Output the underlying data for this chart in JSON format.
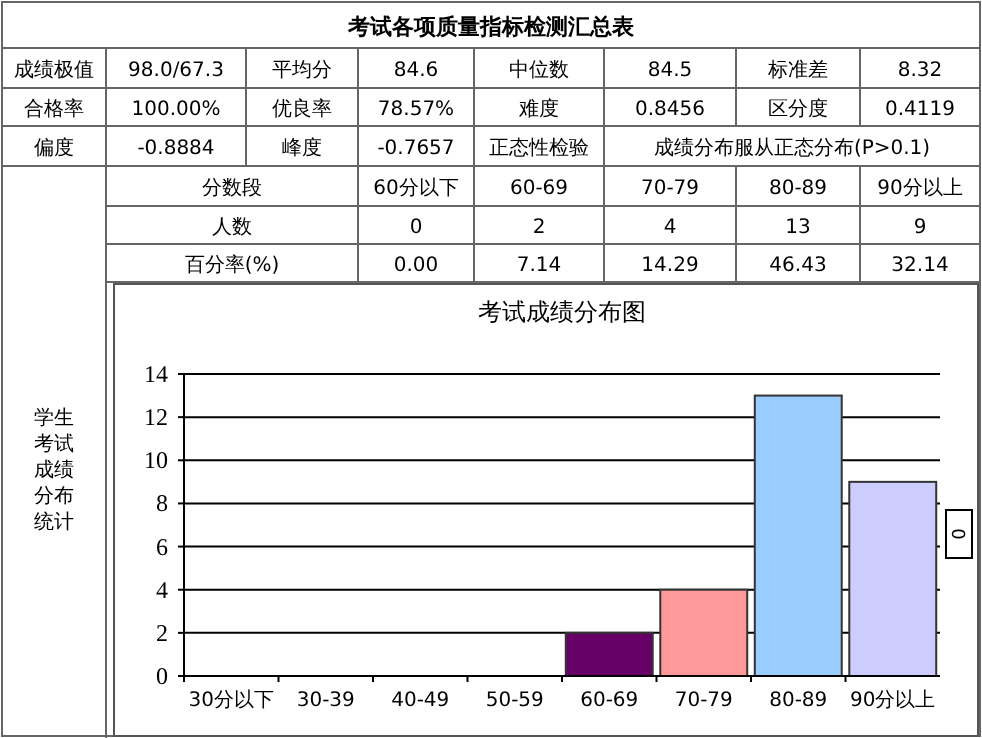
{
  "chart_data": {
    "type": "bar",
    "title": "考试成绩分布图",
    "categories": [
      "30分以下",
      "30-39",
      "40-49",
      "50-59",
      "60-69",
      "70-79",
      "80-89",
      "90分以上"
    ],
    "values": [
      0,
      0,
      0,
      0,
      2,
      4,
      13,
      9
    ],
    "colors": [
      "#660066",
      "#660066",
      "#660066",
      "#660066",
      "#660066",
      "#ff9999",
      "#99ccff",
      "#ccccff"
    ],
    "ylim": [
      0,
      14
    ],
    "yticks": [
      0,
      2,
      4,
      6,
      8,
      10,
      12,
      14
    ],
    "grid": "y",
    "annotations": [
      "考试各项质量指标检测汇总表",
      "成绩极值",
      "98.0/67.3",
      "平均分",
      "84.6",
      "中位数",
      "84.5",
      "标准差",
      "8.32",
      "合格率",
      "100.00%",
      "优良率",
      "78.57%",
      "难度",
      "0.8456",
      "区分度",
      "0.4119",
      "偏度",
      "-0.8884",
      "峰度",
      "-0.7657",
      "正态性检验",
      "成绩分布服从正态分布(P>0.1)",
      "分数段",
      "60分以下",
      "60-69",
      "70-79",
      "80-89",
      "90分以上",
      "人数",
      "0",
      "2",
      "4",
      "13",
      "9",
      "百分率(%)",
      "0.00",
      "7.14",
      "14.29",
      "46.43",
      "32.14",
      "学生考试成绩分布统计",
      "0"
    ]
  }
}
